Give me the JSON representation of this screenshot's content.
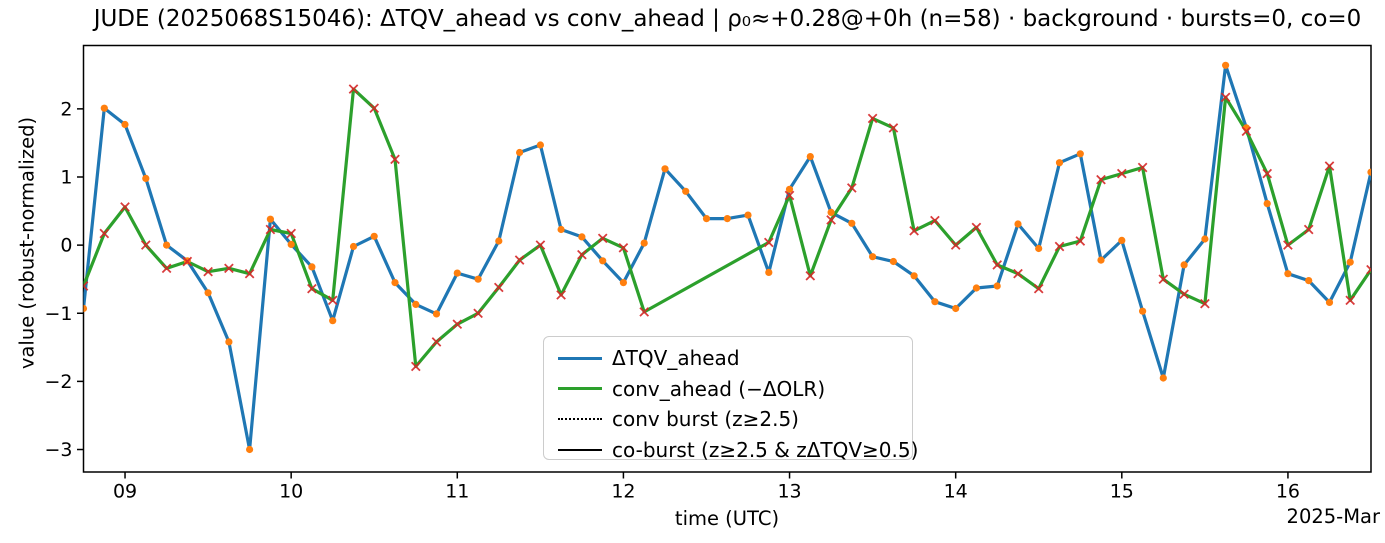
{
  "title": "JUDE (2025068S15046): ΔTQV_ahead vs conv_ahead | ρ₀≈+0.28@+0h (n=58) · background · bursts=0, co=0",
  "colors": {
    "blue_line": "#1f77b4",
    "green_line": "#2ca02c",
    "orange_marker": "#ff7f0e",
    "red_marker": "#d62728",
    "spine": "#000000",
    "legend_border": "#cccccc"
  },
  "chart_data": {
    "type": "line",
    "title": "JUDE (2025068S15046): ΔTQV_ahead vs conv_ahead | ρ₀≈+0.28@+0h (n=58) · background · bursts=0, co=0",
    "xlabel": "time (UTC)",
    "ylabel": "value (robust-normalized)",
    "date_label": "2025-Mar",
    "xlim": [
      8.75,
      16.5
    ],
    "ylim": [
      -3.33,
      2.93
    ],
    "grid": false,
    "legend_position": "lower-center",
    "x_ticks": [
      9,
      10,
      11,
      12,
      13,
      14,
      15,
      16
    ],
    "x_tick_labels": [
      "09",
      "10",
      "11",
      "12",
      "13",
      "14",
      "15",
      "16"
    ],
    "y_ticks": [
      2,
      1,
      0,
      -1,
      -2,
      -3
    ],
    "y_tick_labels": [
      "2",
      "1",
      "0",
      "−1",
      "−2",
      "−3"
    ],
    "x_start": 8.75,
    "x_step": 0.125,
    "series": [
      {
        "name": "ΔTQV_ahead",
        "color": "#1f77b4",
        "marker": "dot",
        "marker_color": "#ff7f0e",
        "values": [
          -0.93,
          2.01,
          1.77,
          0.98,
          0.0,
          -0.23,
          -0.7,
          -1.42,
          -3.0,
          0.38,
          0.01,
          -0.32,
          -1.11,
          -0.02,
          0.13,
          -0.55,
          -0.87,
          -1.01,
          -0.41,
          -0.5,
          0.06,
          1.36,
          1.47,
          0.23,
          0.12,
          -0.23,
          -0.55,
          0.03,
          1.12,
          0.79,
          0.39,
          0.39,
          0.44,
          -0.4,
          0.82,
          1.3,
          0.48,
          0.32,
          -0.17,
          -0.24,
          -0.45,
          -0.83,
          -0.93,
          -0.63,
          -0.6,
          0.31,
          -0.05,
          1.21,
          1.34,
          -0.22,
          0.07,
          -0.97,
          -1.95,
          -0.29,
          0.09,
          2.64,
          1.72,
          0.61,
          -0.42,
          -0.52,
          -0.84,
          -0.25,
          1.07
        ]
      },
      {
        "name": "conv_ahead (−ΔOLR)",
        "color": "#2ca02c",
        "marker": "x",
        "marker_color": "#d62728",
        "values": [
          -0.6,
          0.17,
          0.56,
          0.0,
          -0.34,
          -0.24,
          -0.39,
          -0.34,
          -0.42,
          0.23,
          0.17,
          -0.64,
          -0.81,
          2.29,
          2.01,
          1.26,
          -1.78,
          -1.42,
          -1.16,
          -1.0,
          -0.62,
          -0.22,
          0.0,
          -0.73,
          -0.14,
          0.1,
          -0.04,
          -0.98,
          null,
          null,
          null,
          null,
          null,
          0.04,
          0.73,
          -0.45,
          0.37,
          0.84,
          1.86,
          1.72,
          0.21,
          0.36,
          0.0,
          0.26,
          -0.29,
          -0.42,
          -0.64,
          -0.02,
          0.06,
          0.96,
          1.05,
          1.14,
          -0.5,
          -0.72,
          -0.86,
          2.17,
          1.67,
          1.05,
          0.0,
          0.23,
          1.16,
          -0.81,
          -0.36
        ]
      }
    ],
    "legend": [
      {
        "label": "ΔTQV_ahead",
        "line": "solid",
        "color": "#1f77b4",
        "thickness": 3.3
      },
      {
        "label": "conv_ahead (−ΔOLR)",
        "line": "solid",
        "color": "#2ca02c",
        "thickness": 3.3
      },
      {
        "label": "conv burst (z≥2.5)",
        "line": "dotted",
        "color": "#000000",
        "thickness": 2.2
      },
      {
        "label": "co-burst (z≥2.5 & zΔTQV≥0.5)",
        "line": "solid",
        "color": "#000000",
        "thickness": 2.2
      }
    ]
  }
}
